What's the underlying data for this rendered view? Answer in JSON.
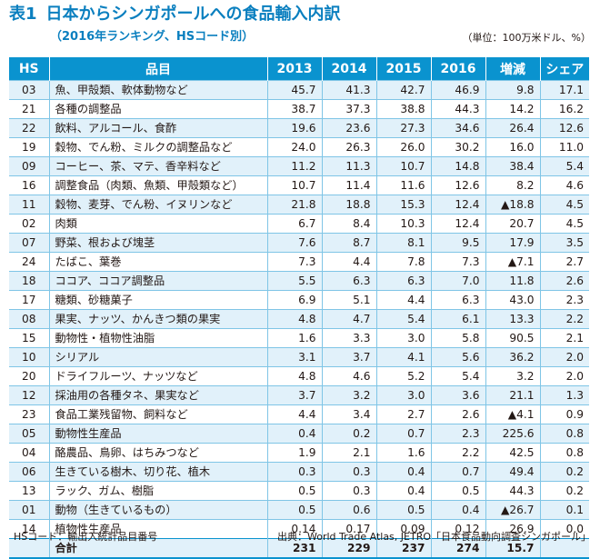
{
  "title": {
    "number": "表1",
    "text": "日本からシンガポールへの食品輸入内訳"
  },
  "subtitle": "（2016年ランキング、HSコード別）",
  "unit": "（単位：100万米ドル、%）",
  "table": {
    "headers": [
      "HS",
      "品目",
      "2013",
      "2014",
      "2015",
      "2016",
      "増減",
      "シェア"
    ],
    "rows": [
      {
        "hs": "03",
        "item": "魚、甲殻類、軟体動物など",
        "y2013": "45.7",
        "y2014": "41.3",
        "y2015": "42.7",
        "y2016": "46.9",
        "change": "9.8",
        "share": "17.1"
      },
      {
        "hs": "21",
        "item": "各種の調整品",
        "y2013": "38.7",
        "y2014": "37.3",
        "y2015": "38.8",
        "y2016": "44.3",
        "change": "14.2",
        "share": "16.2"
      },
      {
        "hs": "22",
        "item": "飲料、アルコール、食酢",
        "y2013": "19.6",
        "y2014": "23.6",
        "y2015": "27.3",
        "y2016": "34.6",
        "change": "26.4",
        "share": "12.6"
      },
      {
        "hs": "19",
        "item": "穀物、でん粉、ミルクの調整品など",
        "y2013": "24.0",
        "y2014": "26.3",
        "y2015": "26.0",
        "y2016": "30.2",
        "change": "16.0",
        "share": "11.0"
      },
      {
        "hs": "09",
        "item": "コーヒー、茶、マテ、香辛料など",
        "y2013": "11.2",
        "y2014": "11.3",
        "y2015": "10.7",
        "y2016": "14.8",
        "change": "38.4",
        "share": "5.4"
      },
      {
        "hs": "16",
        "item": "調整食品（肉類、魚類、甲殻類など）",
        "y2013": "10.7",
        "y2014": "11.4",
        "y2015": "11.6",
        "y2016": "12.6",
        "change": "8.2",
        "share": "4.6"
      },
      {
        "hs": "11",
        "item": "穀物、麦芽、でん粉、イヌリンなど",
        "y2013": "21.8",
        "y2014": "18.8",
        "y2015": "15.3",
        "y2016": "12.4",
        "change": "▲18.8",
        "share": "4.5"
      },
      {
        "hs": "02",
        "item": "肉類",
        "y2013": "6.7",
        "y2014": "8.4",
        "y2015": "10.3",
        "y2016": "12.4",
        "change": "20.7",
        "share": "4.5"
      },
      {
        "hs": "07",
        "item": "野菜、根および塊茎",
        "y2013": "7.6",
        "y2014": "8.7",
        "y2015": "8.1",
        "y2016": "9.5",
        "change": "17.9",
        "share": "3.5"
      },
      {
        "hs": "24",
        "item": "たばこ、葉巻",
        "y2013": "7.3",
        "y2014": "4.4",
        "y2015": "7.8",
        "y2016": "7.3",
        "change": "▲7.1",
        "share": "2.7"
      },
      {
        "hs": "18",
        "item": "ココア、ココア調整品",
        "y2013": "5.5",
        "y2014": "6.3",
        "y2015": "6.3",
        "y2016": "7.0",
        "change": "11.8",
        "share": "2.6"
      },
      {
        "hs": "17",
        "item": "糖類、砂糖菓子",
        "y2013": "6.9",
        "y2014": "5.1",
        "y2015": "4.4",
        "y2016": "6.3",
        "change": "43.0",
        "share": "2.3"
      },
      {
        "hs": "08",
        "item": "果実、ナッツ、かんきつ類の果実",
        "y2013": "4.8",
        "y2014": "4.7",
        "y2015": "5.4",
        "y2016": "6.1",
        "change": "13.3",
        "share": "2.2"
      },
      {
        "hs": "15",
        "item": "動物性・植物性油脂",
        "y2013": "1.6",
        "y2014": "3.3",
        "y2015": "3.0",
        "y2016": "5.8",
        "change": "90.5",
        "share": "2.1"
      },
      {
        "hs": "10",
        "item": "シリアル",
        "y2013": "3.1",
        "y2014": "3.7",
        "y2015": "4.1",
        "y2016": "5.6",
        "change": "36.2",
        "share": "2.0"
      },
      {
        "hs": "20",
        "item": "ドライフルーツ、ナッツなど",
        "y2013": "4.8",
        "y2014": "4.6",
        "y2015": "5.2",
        "y2016": "5.4",
        "change": "3.2",
        "share": "2.0"
      },
      {
        "hs": "12",
        "item": "採油用の各種タネ、果実など",
        "y2013": "3.7",
        "y2014": "3.2",
        "y2015": "3.0",
        "y2016": "3.6",
        "change": "21.1",
        "share": "1.3"
      },
      {
        "hs": "23",
        "item": "食品工業残留物、飼料など",
        "y2013": "4.4",
        "y2014": "3.4",
        "y2015": "2.7",
        "y2016": "2.6",
        "change": "▲4.1",
        "share": "0.9"
      },
      {
        "hs": "05",
        "item": "動物性生産品",
        "y2013": "0.4",
        "y2014": "0.2",
        "y2015": "0.7",
        "y2016": "2.3",
        "change": "225.6",
        "share": "0.8"
      },
      {
        "hs": "04",
        "item": "酪農品、鳥卵、はちみつなど",
        "y2013": "1.9",
        "y2014": "2.1",
        "y2015": "1.6",
        "y2016": "2.2",
        "change": "42.5",
        "share": "0.8"
      },
      {
        "hs": "06",
        "item": "生きている樹木、切り花、植木",
        "y2013": "0.3",
        "y2014": "0.3",
        "y2015": "0.4",
        "y2016": "0.7",
        "change": "49.4",
        "share": "0.2"
      },
      {
        "hs": "13",
        "item": "ラック、ガム、樹脂",
        "y2013": "0.5",
        "y2014": "0.3",
        "y2015": "0.4",
        "y2016": "0.5",
        "change": "44.3",
        "share": "0.2"
      },
      {
        "hs": "01",
        "item": "動物（生きているもの）",
        "y2013": "0.5",
        "y2014": "0.6",
        "y2015": "0.5",
        "y2016": "0.4",
        "change": "▲26.7",
        "share": "0.1"
      },
      {
        "hs": "14",
        "item": "植物性生産品",
        "y2013": "0.14",
        "y2014": "0.17",
        "y2015": "0.09",
        "y2016": "0.12",
        "change": "26.9",
        "share": "0.0"
      }
    ],
    "total": {
      "label": "合計",
      "y2013": "231",
      "y2014": "229",
      "y2015": "237",
      "y2016": "274",
      "change": "15.7",
      "share": ""
    }
  },
  "footer": {
    "note": "HSコード：輸出入統計品目番号",
    "source": "出典：World Trade Atlas, JETRO「日本食品動向調査シンガポール」"
  }
}
